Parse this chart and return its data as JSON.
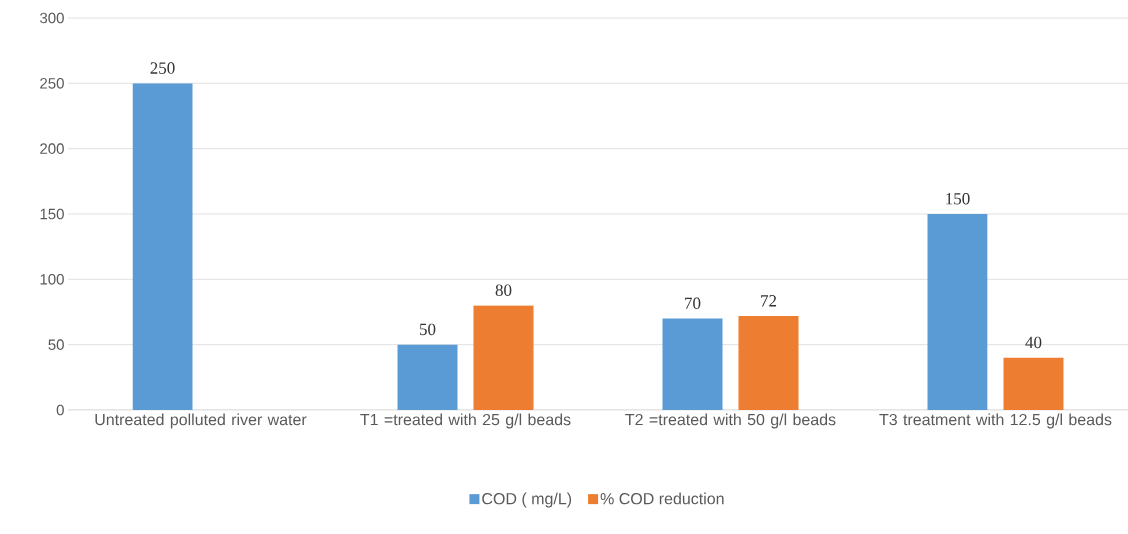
{
  "chart_data": {
    "type": "bar",
    "categories": [
      "Untreated polluted river water",
      "T1 =treated with 25 g/l beads",
      "T2 =treated with 50 g/l beads",
      "T3 treatment with 12.5 g/l beads"
    ],
    "series": [
      {
        "name": "COD ( mg/L)",
        "color": "#5b9bd5",
        "values": [
          250,
          50,
          70,
          150
        ]
      },
      {
        "name": "% COD reduction",
        "color": "#ed7d31",
        "values": [
          null,
          80,
          72,
          40
        ]
      }
    ],
    "ylim": [
      0,
      300
    ],
    "yticks": [
      0,
      50,
      100,
      150,
      200,
      250,
      300
    ],
    "grid": "y",
    "legend": "bottom",
    "data_labels": true
  }
}
